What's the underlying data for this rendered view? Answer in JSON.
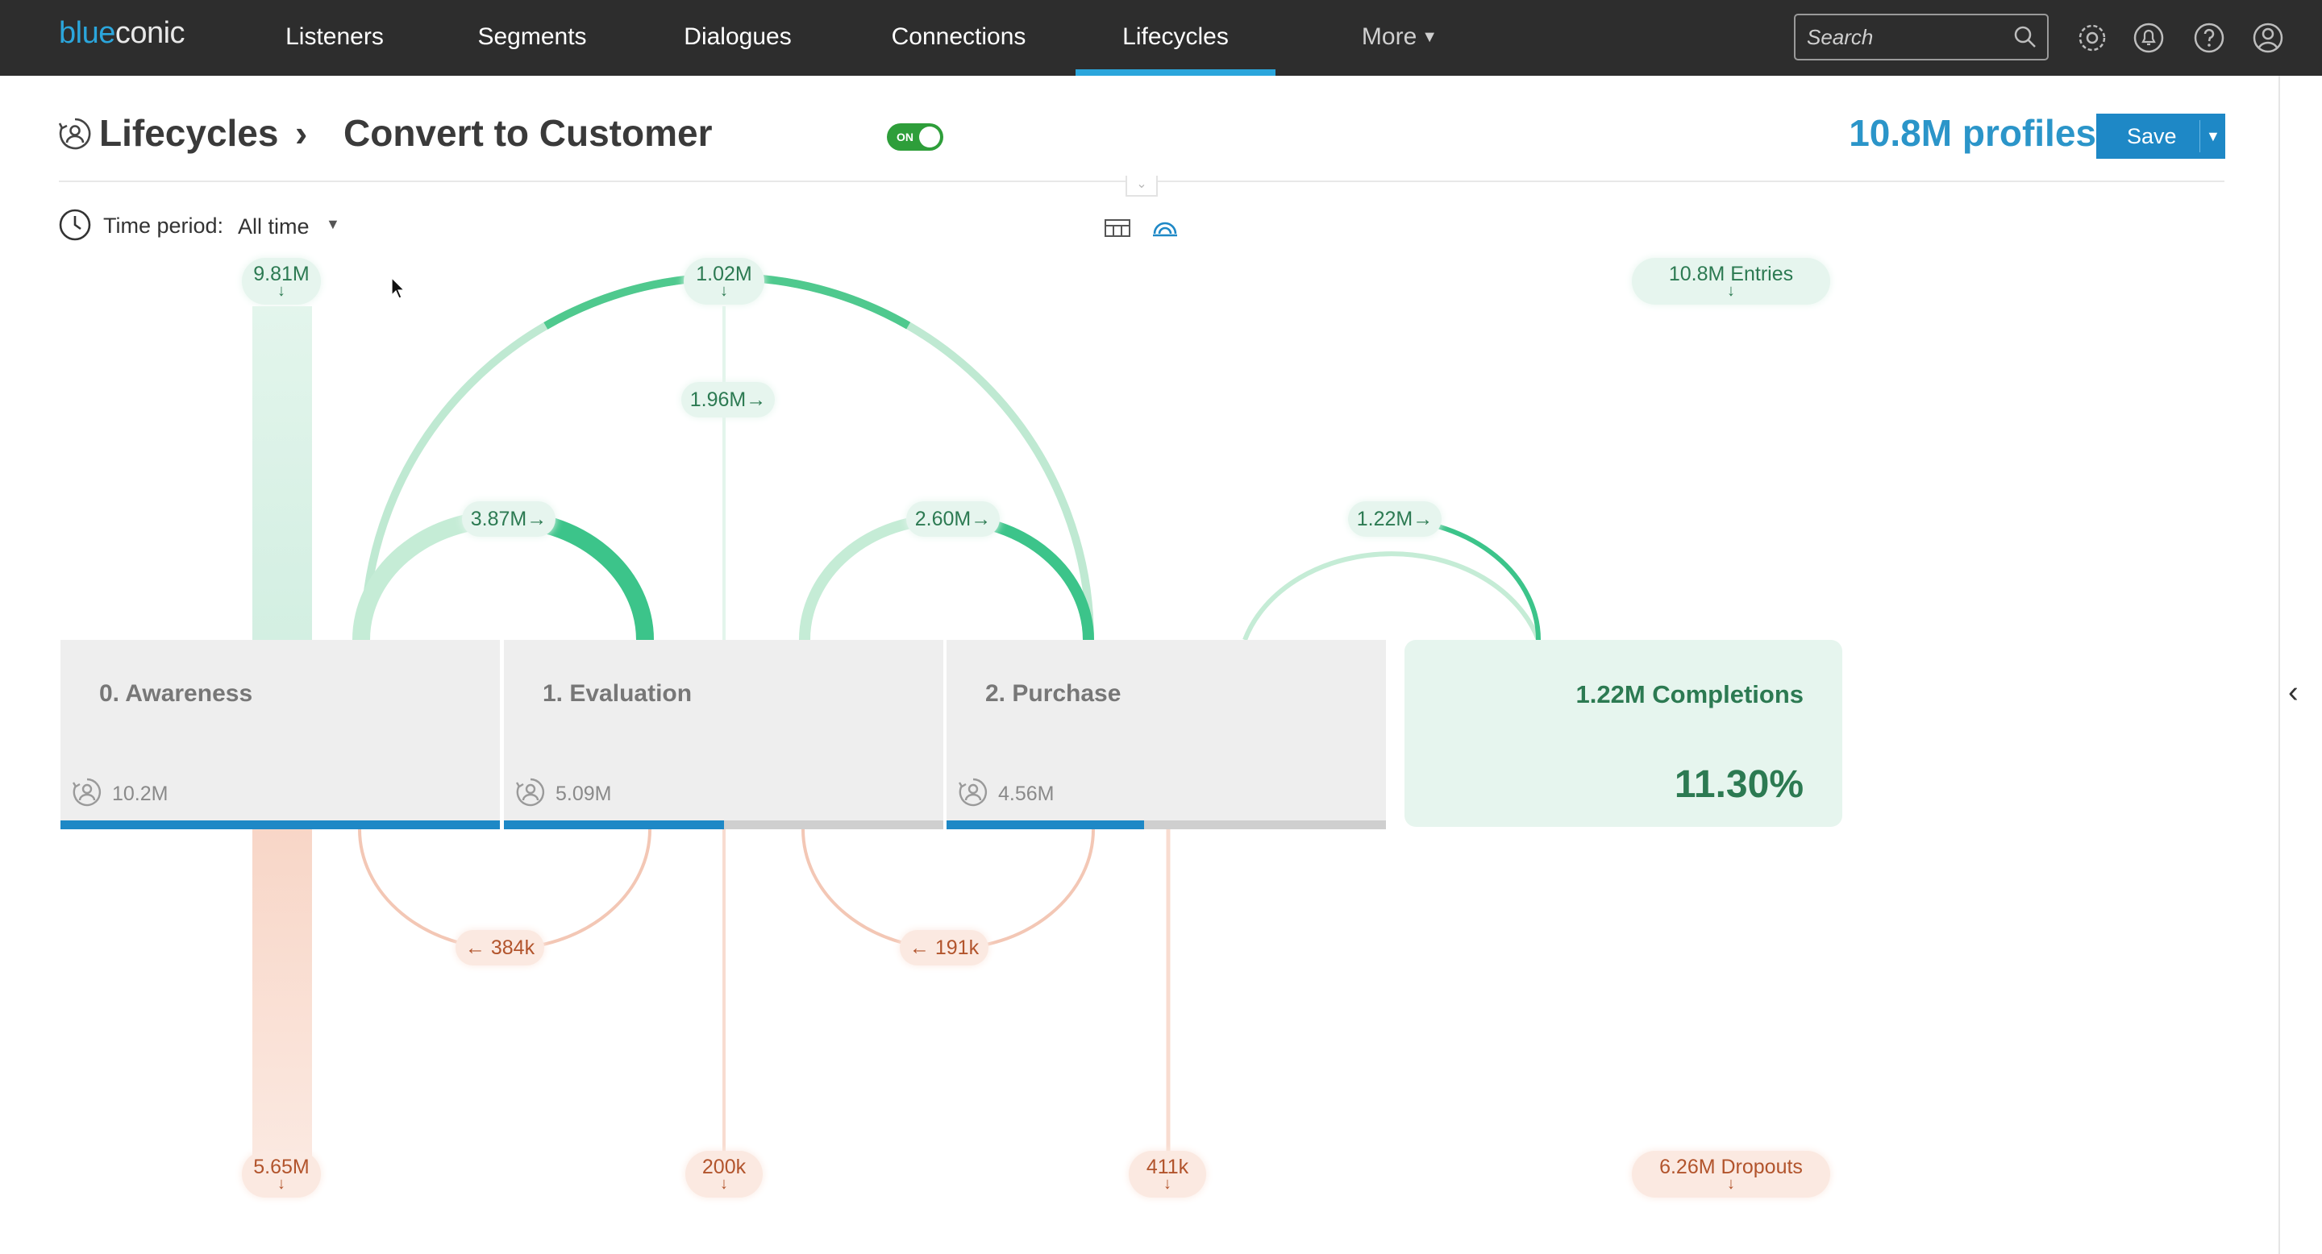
{
  "nav": {
    "logo_blue": "blue",
    "logo_rest": "conic",
    "items": [
      "Listeners",
      "Segments",
      "Dialogues",
      "Connections",
      "Lifecycles",
      "More"
    ],
    "active": "Lifecycles",
    "search_placeholder": "Search",
    "icons": [
      "search-icon",
      "gear-icon",
      "bell-icon",
      "help-icon",
      "user-icon"
    ]
  },
  "header": {
    "crumb_root": "Lifecycles",
    "separator": "›",
    "lifecycle_name": "Convert to Customer",
    "toggle_label": "ON",
    "toggle_on": true,
    "profiles": "10.8M profiles",
    "save_label": "Save"
  },
  "filters": {
    "time_period_label": "Time period:",
    "time_period_value": "All time"
  },
  "flow": {
    "top_labels": [
      "9.81M",
      "1.02M"
    ],
    "entries": "10.8M Entries",
    "forward_labels": [
      "3.87M→",
      "1.96M→",
      "2.60M→",
      "1.22M→"
    ],
    "backward_labels": [
      "← 384k",
      "← 191k"
    ],
    "bottom_labels": [
      "5.65M",
      "200k",
      "411k"
    ],
    "dropouts": "6.26M Dropouts",
    "down_arrow": "↓"
  },
  "stages": [
    {
      "title": "0.  Awareness",
      "count": "10.2M",
      "progress": 1.0
    },
    {
      "title": "1.  Evaluation",
      "count": "5.09M",
      "progress": 0.5
    },
    {
      "title": "2.  Purchase",
      "count": "4.56M",
      "progress": 0.45
    }
  ],
  "completion": {
    "title": "1.22M  Completions",
    "percent": "11.30%"
  },
  "colors": {
    "nav_bg": "#2d2d2d",
    "accent_blue": "#1e88c6",
    "forward_green": "#3cc48a",
    "backward_salmon": "#f2b8a0",
    "completion_bg": "#e6f5ee"
  }
}
